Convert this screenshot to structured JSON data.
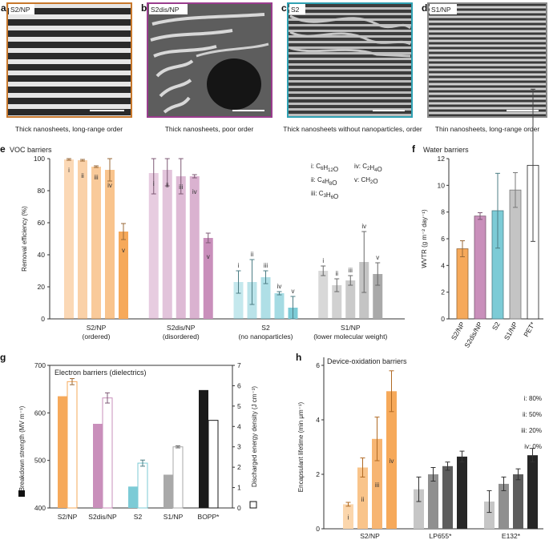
{
  "images": [
    {
      "letter": "a",
      "tag": "S2/NP",
      "caption": "Thick nanosheets, long-range order",
      "border": "#c8782c"
    },
    {
      "letter": "b",
      "tag": "S2dis/NP",
      "caption": "Thick nanosheets, poor order",
      "border": "#9a3d8e"
    },
    {
      "letter": "c",
      "tag": "S2",
      "caption": "Thick nanosheets without nanoparticles, order",
      "border": "#2fa1b3"
    },
    {
      "letter": "d",
      "tag": "S1/NP",
      "caption": "Thin nanosheets, long-range order",
      "border": "#8a8a8a"
    }
  ],
  "colors": {
    "s2np": "#f6a95a",
    "s2dis": "#c98fbb",
    "s2": "#7ccbd6",
    "s1np": "#a9a9a9",
    "black": "#1a1a1a"
  },
  "chart_data": [
    {
      "panel": "e",
      "type": "bar",
      "title": "VOC barriers",
      "ylabel": "Removal efficiency (%)",
      "ylim": [
        0,
        100
      ],
      "yticks": [
        0,
        20,
        40,
        60,
        80,
        100
      ],
      "legend": [
        "i: C6H12O",
        "ii: C4H8O",
        "iii: C3H6O",
        "iv: C2H4O",
        "v: CH2O"
      ],
      "groups": [
        {
          "label": "S2/NP",
          "sub": "(ordered)",
          "color": "#f6a95a",
          "values": [
            99.5,
            99,
            95,
            93,
            54.5
          ],
          "err": [
            0.5,
            0.5,
            0.5,
            7,
            5
          ],
          "labels": [
            "i",
            "ii",
            "iii",
            "iv",
            "v"
          ]
        },
        {
          "label": "S2dis/NP",
          "sub": "(disordered)",
          "color": "#c98fbb",
          "values": [
            91,
            93,
            89,
            89,
            50.5
          ],
          "err": [
            13,
            10,
            11,
            1,
            3
          ],
          "labels": [
            "i",
            "ii",
            "iii",
            "iv",
            "v"
          ]
        },
        {
          "label": "S2",
          "sub": "(no nanoparticles)",
          "color": "#7ccbd6",
          "values": [
            23,
            23,
            26,
            16,
            7
          ],
          "err": [
            7,
            14,
            4,
            1,
            7
          ],
          "labels": [
            "i",
            "ii",
            "iii",
            "iv",
            "v"
          ]
        },
        {
          "label": "S1/NP",
          "sub": "(lower molecular weight)",
          "color": "#a9a9a9",
          "values": [
            30,
            21,
            24,
            35.5,
            28
          ],
          "err": [
            3,
            4,
            3,
            19,
            7
          ],
          "labels": [
            "i",
            "ii",
            "iii",
            "iv",
            "v"
          ]
        }
      ]
    },
    {
      "panel": "f",
      "type": "bar",
      "title": "Water barriers",
      "ylabel": "WVTR (g m⁻² day⁻¹)",
      "ylim": [
        0,
        12
      ],
      "yticks": [
        0,
        2,
        4,
        6,
        8,
        10,
        12
      ],
      "categories": [
        "S2/NP",
        "S2dis/NP",
        "S2",
        "S1/NP",
        "PET*"
      ],
      "values": [
        5.25,
        7.7,
        8.1,
        9.65,
        11.5
      ],
      "err": [
        0.6,
        0.25,
        2.8,
        1.3,
        5.7
      ],
      "colors": [
        "#f6a95a",
        "#c98fbb",
        "#7ccbd6",
        "#c4c4c4",
        "#ffffff"
      ]
    },
    {
      "panel": "g",
      "type": "bar",
      "title": "Electron barriers (dielectrics)",
      "ylabel": "Breakdown strength (MV m⁻¹)",
      "ylim": [
        400,
        700
      ],
      "yticks": [
        400,
        500,
        600,
        700
      ],
      "y2label": "Discharged energy density (J cm⁻³)",
      "y2lim": [
        0,
        7
      ],
      "y2ticks": [
        0,
        1,
        2,
        3,
        4,
        5,
        6,
        7
      ],
      "categories": [
        "S2/NP",
        "S2dis/NP",
        "S2",
        "S1/NP",
        "BOPP*"
      ],
      "colors": [
        "#f6a95a",
        "#c98fbb",
        "#7ccbd6",
        "#a9a9a9",
        "#1a1a1a"
      ],
      "breakdown": [
        635,
        577,
        445,
        470,
        648
      ],
      "energy": [
        6.2,
        5.4,
        2.2,
        3.0,
        4.3
      ],
      "energy_err": [
        0.15,
        0.25,
        0.15,
        0.05,
        0
      ]
    },
    {
      "panel": "h",
      "type": "bar",
      "title": "Device-oxidation barriers",
      "ylabel": "Encapsulant lifetime (min μm⁻¹)",
      "ylim": [
        0,
        6
      ],
      "yticks": [
        0,
        2,
        4,
        6
      ],
      "legend": [
        "i: 80%",
        "ii: 50%",
        "iii: 20%",
        "iv: 0%"
      ],
      "groups": [
        {
          "label": "S2/NP",
          "values": [
            0.9,
            2.25,
            3.3,
            5.05
          ],
          "err": [
            0.07,
            0.35,
            0.8,
            0.75
          ],
          "colors": [
            "#fbd6ac",
            "#f9c48a",
            "#f7b572",
            "#f6a95a"
          ],
          "labels": [
            "i",
            "ii",
            "iii",
            "iv"
          ]
        },
        {
          "label": "LP655*",
          "values": [
            1.45,
            2.0,
            2.3,
            2.65
          ],
          "err": [
            0.45,
            0.25,
            0.15,
            0.2
          ],
          "colors": [
            "#c6c6c6",
            "#8f8f8f",
            "#5d5d5d",
            "#262626"
          ],
          "labels": []
        },
        {
          "label": "E132*",
          "values": [
            1.0,
            1.65,
            2.0,
            2.7
          ],
          "err": [
            0.4,
            0.25,
            0.2,
            0.25
          ],
          "colors": [
            "#c6c6c6",
            "#8f8f8f",
            "#5d5d5d",
            "#262626"
          ],
          "labels": []
        }
      ]
    }
  ]
}
